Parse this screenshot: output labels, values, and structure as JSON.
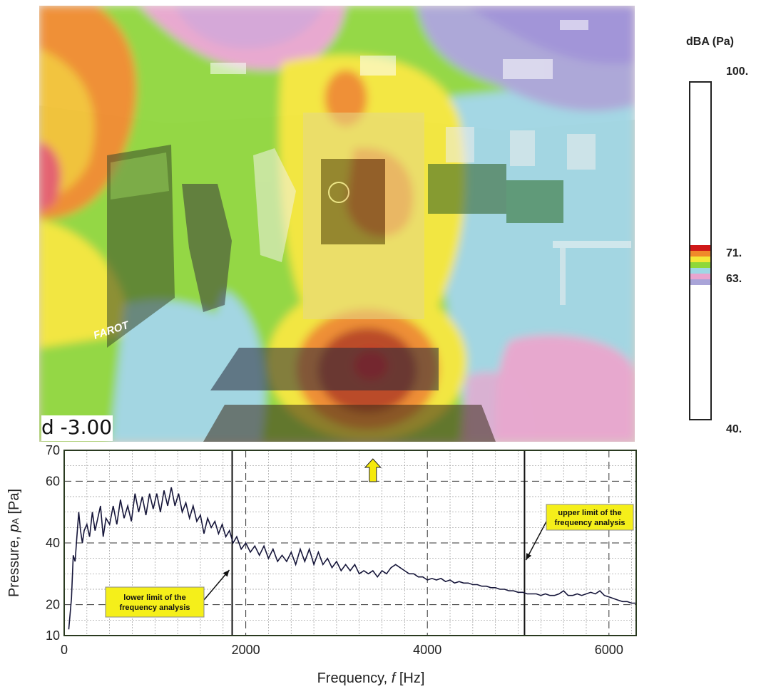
{
  "photo": {
    "label": "d -3.00",
    "booth_brand": "FAROT"
  },
  "color_scale": {
    "title": "dBA (Pa)",
    "ticks": [
      "100.",
      "71.",
      "63.",
      "40."
    ],
    "colors": [
      "#d01818",
      "#f08a2a",
      "#f5e838",
      "#8fd83a",
      "#9fd7e5",
      "#e9a5cf",
      "#a9a4d8"
    ]
  },
  "chart_data": {
    "type": "line",
    "xlabel_main": "Frequency,",
    "xlabel_var": "f",
    "xlabel_unit": "[Hz]",
    "ylabel_main": "Pressure,",
    "ylabel_var": "p",
    "ylabel_sub": "A",
    "ylabel_unit": "[Pa]",
    "xlim": [
      0,
      6300
    ],
    "ylim": [
      10,
      70
    ],
    "x_ticks": [
      0,
      2000,
      4000,
      6000
    ],
    "y_ticks": [
      10,
      20,
      40,
      60,
      70
    ],
    "grid": true,
    "limits": [
      {
        "x": 1850,
        "label_line1": "lower limit of the",
        "label_line2": "frequency analysis"
      },
      {
        "x": 5070,
        "label_line1": "upper limit of the",
        "label_line2": "frequency analysis"
      }
    ],
    "series": [
      {
        "color": "#16163a",
        "points": [
          [
            50,
            12
          ],
          [
            80,
            22
          ],
          [
            100,
            36
          ],
          [
            120,
            34
          ],
          [
            140,
            42
          ],
          [
            160,
            50
          ],
          [
            180,
            44
          ],
          [
            200,
            40
          ],
          [
            220,
            44
          ],
          [
            250,
            46
          ],
          [
            280,
            42
          ],
          [
            310,
            50
          ],
          [
            340,
            44
          ],
          [
            370,
            48
          ],
          [
            400,
            52
          ],
          [
            430,
            42
          ],
          [
            460,
            48
          ],
          [
            500,
            46
          ],
          [
            540,
            52
          ],
          [
            580,
            46
          ],
          [
            620,
            54
          ],
          [
            660,
            48
          ],
          [
            700,
            52
          ],
          [
            740,
            47
          ],
          [
            780,
            56
          ],
          [
            820,
            50
          ],
          [
            860,
            55
          ],
          [
            900,
            49
          ],
          [
            940,
            56
          ],
          [
            980,
            51
          ],
          [
            1020,
            56
          ],
          [
            1060,
            50
          ],
          [
            1100,
            57
          ],
          [
            1140,
            52
          ],
          [
            1180,
            58
          ],
          [
            1220,
            52
          ],
          [
            1260,
            56
          ],
          [
            1300,
            50
          ],
          [
            1340,
            53
          ],
          [
            1380,
            48
          ],
          [
            1420,
            52
          ],
          [
            1460,
            47
          ],
          [
            1500,
            49
          ],
          [
            1540,
            43
          ],
          [
            1580,
            48
          ],
          [
            1620,
            45
          ],
          [
            1660,
            47
          ],
          [
            1700,
            43
          ],
          [
            1740,
            46
          ],
          [
            1780,
            42
          ],
          [
            1820,
            44
          ],
          [
            1860,
            40
          ],
          [
            1900,
            42
          ],
          [
            1950,
            38
          ],
          [
            2000,
            40
          ],
          [
            2050,
            37
          ],
          [
            2100,
            39
          ],
          [
            2150,
            36
          ],
          [
            2200,
            39
          ],
          [
            2250,
            35
          ],
          [
            2300,
            38
          ],
          [
            2350,
            34
          ],
          [
            2400,
            36
          ],
          [
            2450,
            34
          ],
          [
            2500,
            37
          ],
          [
            2550,
            33
          ],
          [
            2600,
            38
          ],
          [
            2650,
            34
          ],
          [
            2700,
            38
          ],
          [
            2750,
            33
          ],
          [
            2800,
            37
          ],
          [
            2850,
            33
          ],
          [
            2900,
            35
          ],
          [
            2950,
            32
          ],
          [
            3000,
            34
          ],
          [
            3050,
            31
          ],
          [
            3100,
            33
          ],
          [
            3150,
            31
          ],
          [
            3200,
            33
          ],
          [
            3250,
            30
          ],
          [
            3300,
            31
          ],
          [
            3350,
            30
          ],
          [
            3400,
            31
          ],
          [
            3450,
            29
          ],
          [
            3500,
            31
          ],
          [
            3550,
            30
          ],
          [
            3600,
            32
          ],
          [
            3650,
            33
          ],
          [
            3700,
            32
          ],
          [
            3750,
            31
          ],
          [
            3800,
            30
          ],
          [
            3850,
            30
          ],
          [
            3900,
            29
          ],
          [
            3950,
            29
          ],
          [
            4000,
            28
          ],
          [
            4050,
            28.5
          ],
          [
            4100,
            28
          ],
          [
            4150,
            28.5
          ],
          [
            4200,
            27.5
          ],
          [
            4250,
            28
          ],
          [
            4300,
            27
          ],
          [
            4350,
            27.5
          ],
          [
            4400,
            27
          ],
          [
            4450,
            27
          ],
          [
            4500,
            26.5
          ],
          [
            4550,
            26.5
          ],
          [
            4600,
            26
          ],
          [
            4650,
            26
          ],
          [
            4700,
            25.5
          ],
          [
            4750,
            25.5
          ],
          [
            4800,
            25
          ],
          [
            4850,
            25
          ],
          [
            4900,
            24.5
          ],
          [
            4950,
            24.5
          ],
          [
            5000,
            24
          ],
          [
            5050,
            24
          ],
          [
            5100,
            23.5
          ],
          [
            5150,
            23.5
          ],
          [
            5200,
            23.5
          ],
          [
            5250,
            23
          ],
          [
            5300,
            23.5
          ],
          [
            5350,
            23
          ],
          [
            5400,
            23
          ],
          [
            5450,
            23.5
          ],
          [
            5500,
            24.5
          ],
          [
            5550,
            23
          ],
          [
            5600,
            23
          ],
          [
            5650,
            23.5
          ],
          [
            5700,
            23
          ],
          [
            5750,
            23.5
          ],
          [
            5800,
            24
          ],
          [
            5850,
            23.5
          ],
          [
            5900,
            24.5
          ],
          [
            5950,
            23
          ],
          [
            6000,
            22.5
          ],
          [
            6050,
            22
          ],
          [
            6100,
            21.5
          ],
          [
            6150,
            21
          ],
          [
            6200,
            21
          ],
          [
            6250,
            20.5
          ],
          [
            6300,
            20.5
          ]
        ]
      }
    ],
    "marker": {
      "x": 3400,
      "color": "#f5e90c"
    }
  }
}
